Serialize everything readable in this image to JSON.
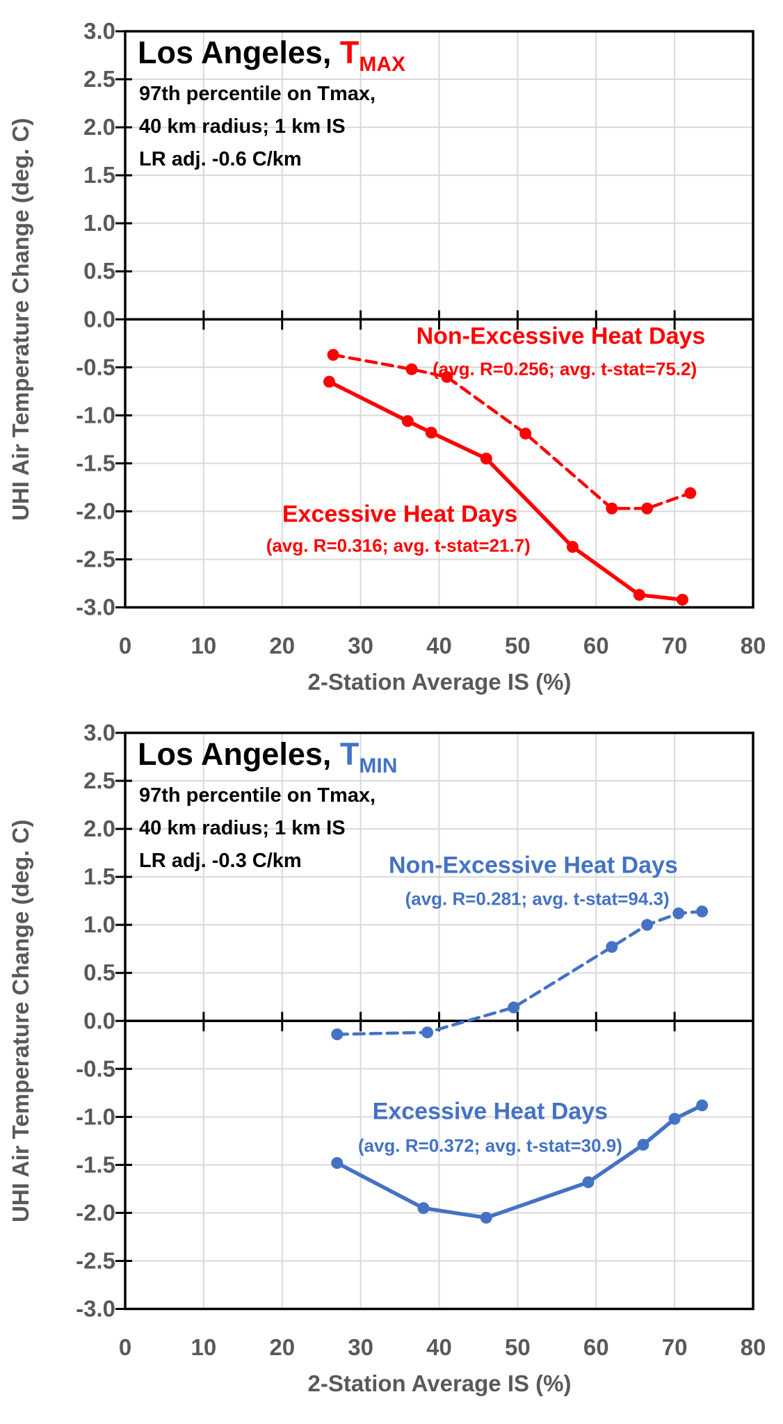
{
  "page": {
    "background": "#ffffff",
    "grid_color": "#d9d9d9",
    "axis_color": "#000000",
    "tick_label_color": "#595959"
  },
  "chart_data": [
    {
      "type": "line",
      "title_prefix": "Los Angeles, ",
      "title_symbol": "T",
      "title_subscript": "MAX",
      "accent_color": "#ff0000",
      "subtitle_lines": [
        "97th percentile on Tmax,",
        "40 km radius; 1 km IS",
        "LR adj. -0.6 C/km"
      ],
      "xlabel": "2-Station Average IS (%)",
      "ylabel": "UHI Air Temperature Change (deg. C)",
      "xlim": [
        0,
        80
      ],
      "ylim": [
        -3,
        3
      ],
      "x_ticks": [
        0,
        10,
        20,
        30,
        40,
        50,
        60,
        70,
        80
      ],
      "x_tick_labels": [
        "0",
        "10",
        "20",
        "30",
        "40",
        "50",
        "60",
        "70",
        "80"
      ],
      "y_ticks": [
        3.0,
        2.5,
        2.0,
        1.5,
        1.0,
        0.5,
        0.0,
        -0.5,
        -1.0,
        -1.5,
        -2.0,
        -2.5,
        -3.0
      ],
      "y_tick_labels": [
        "3.0",
        "2.5",
        "2.0",
        "1.5",
        "1.0",
        "0.5",
        "0.0",
        "-0.5",
        "-1.0",
        "-1.5",
        "-2.0",
        "-2.5",
        "-3.0"
      ],
      "grid": true,
      "series": [
        {
          "name": "Non-Excessive Heat Days",
          "stats": "(avg. R=0.256; avg. t-stat=75.2)",
          "line_style": "dashed",
          "x": [
            26.5,
            36.5,
            41,
            51,
            62,
            66.5,
            72
          ],
          "y": [
            -0.37,
            -0.52,
            -0.6,
            -1.19,
            -1.97,
            -1.97,
            -1.81
          ],
          "label_pos": [
            55.5,
            -0.18
          ],
          "stats_pos": [
            56,
            -0.52
          ]
        },
        {
          "name": "Excessive Heat Days",
          "stats": "(avg. R=0.316; avg. t-stat=21.7)",
          "line_style": "solid",
          "x": [
            26,
            36,
            39,
            46,
            57,
            65.5,
            71
          ],
          "y": [
            -0.65,
            -1.06,
            -1.18,
            -1.45,
            -2.37,
            -2.87,
            -2.92
          ],
          "label_pos": [
            35,
            -2.03
          ],
          "stats_pos": [
            34.8,
            -2.36
          ]
        }
      ]
    },
    {
      "type": "line",
      "title_prefix": "Los Angeles, ",
      "title_symbol": "T",
      "title_subscript": "MIN",
      "accent_color": "#4472c4",
      "subtitle_lines": [
        "97th percentile on Tmax,",
        "40 km radius; 1 km IS",
        "LR adj. -0.3 C/km"
      ],
      "xlabel": "2-Station Average IS (%)",
      "ylabel": "UHI Air Temperature Change (deg. C)",
      "xlim": [
        0,
        80
      ],
      "ylim": [
        -3,
        3
      ],
      "x_ticks": [
        0,
        10,
        20,
        30,
        40,
        50,
        60,
        70,
        80
      ],
      "x_tick_labels": [
        "0",
        "10",
        "20",
        "30",
        "40",
        "50",
        "60",
        "70",
        "80"
      ],
      "y_ticks": [
        3.0,
        2.5,
        2.0,
        1.5,
        1.0,
        0.5,
        0.0,
        -0.5,
        -1.0,
        -1.5,
        -2.0,
        -2.5,
        -3.0
      ],
      "y_tick_labels": [
        "3.0",
        "2.5",
        "2.0",
        "1.5",
        "1.0",
        "0.5",
        "0.0",
        "-0.5",
        "-1.0",
        "-1.5",
        "-2.0",
        "-2.5",
        "-3.0"
      ],
      "grid": true,
      "series": [
        {
          "name": "Non-Excessive Heat Days",
          "stats": "(avg. R=0.281; avg. t-stat=94.3)",
          "line_style": "dashed",
          "x": [
            27,
            38.5,
            49.5,
            62,
            66.5,
            70.5,
            73.5
          ],
          "y": [
            -0.14,
            -0.12,
            0.14,
            0.77,
            1.0,
            1.12,
            1.14
          ],
          "label_pos": [
            52,
            1.62
          ],
          "stats_pos": [
            52.5,
            1.27
          ]
        },
        {
          "name": "Excessive Heat Days",
          "stats": "(avg. R=0.372; avg. t-stat=30.9)",
          "line_style": "solid",
          "x": [
            27,
            38,
            46,
            59,
            66,
            70,
            73.5
          ],
          "y": [
            -1.48,
            -1.95,
            -2.05,
            -1.68,
            -1.29,
            -1.02,
            -0.88
          ],
          "label_pos": [
            46.5,
            -0.95
          ],
          "stats_pos": [
            46.5,
            -1.3
          ]
        }
      ]
    }
  ]
}
